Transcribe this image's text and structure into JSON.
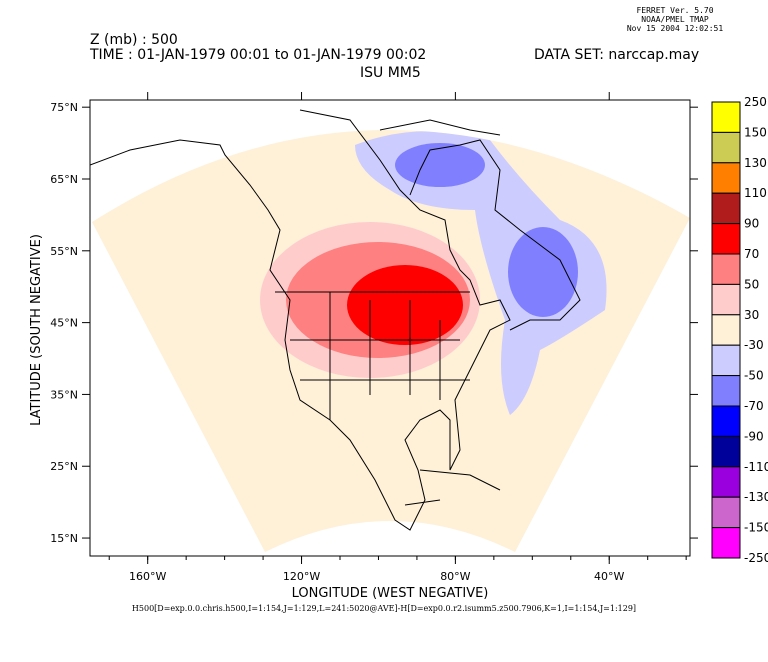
{
  "stamp": {
    "line1": "FERRET Ver. 5.70",
    "line2": "NOAA/PMEL TMAP",
    "line3": "Nov 15 2004 12:02:51"
  },
  "header": {
    "variable": "Z (mb) : 500",
    "time": "TIME : 01-JAN-1979 00:01 to 01-JAN-1979 00:02",
    "dataset": "DATA SET: narccap.may",
    "title": "ISU MM5"
  },
  "footer": "H500[D=exp.0.0.chris.h500,I=1:154,J=1:129,L=241:5020@AVE]-H[D=exp0.0.r2.isumm5.z500.7906,K=1,I=1:154,J=1:129]",
  "chart_data": {
    "type": "heatmap",
    "title": "ISU MM5",
    "xlabel": "LONGITUDE (WEST NEGATIVE)",
    "ylabel": "LATITUDE (SOUTH NEGATIVE)",
    "xlim": [
      -175,
      -19
    ],
    "ylim": [
      12.5,
      76
    ],
    "xticks": [
      {
        "value": -160,
        "label": "160°W"
      },
      {
        "value": -120,
        "label": "120°W"
      },
      {
        "value": -80,
        "label": "80°W"
      },
      {
        "value": -40,
        "label": "40°W"
      }
    ],
    "yticks": [
      {
        "value": 75,
        "label": "75°N"
      },
      {
        "value": 65,
        "label": "65°N"
      },
      {
        "value": 55,
        "label": "55°N"
      },
      {
        "value": 45,
        "label": "45°N"
      },
      {
        "value": 35,
        "label": "35°N"
      },
      {
        "value": 25,
        "label": "25°N"
      },
      {
        "value": 15,
        "label": "15°N"
      }
    ],
    "colorbar": {
      "levels": [
        "250",
        "150",
        "130",
        "110",
        "90",
        "70",
        "50",
        "30",
        "-30",
        "-50",
        "-70",
        "-90",
        "-110",
        "-130",
        "-150",
        "-250"
      ],
      "colors": [
        "#ffff00",
        "#cccc55",
        "#ff8000",
        "#b01c1c",
        "#ff0000",
        "#ff8080",
        "#ffcccc",
        "#fff0d8",
        "#ccccff",
        "#8080ff",
        "#0000ff",
        "#00009a",
        "#9900dd",
        "#cc66cc",
        "#ff00ff"
      ]
    },
    "features": [
      {
        "name": "positive anomaly",
        "center_lon": -95,
        "center_lat": 48,
        "max_level": "70 to 90"
      },
      {
        "name": "negative anomaly north",
        "center_lon": -82,
        "center_lat": 67,
        "min_level": "-70 to -50"
      },
      {
        "name": "negative anomaly east",
        "center_lon": -55,
        "center_lat": 52,
        "min_level": "-70 to -50"
      }
    ]
  }
}
